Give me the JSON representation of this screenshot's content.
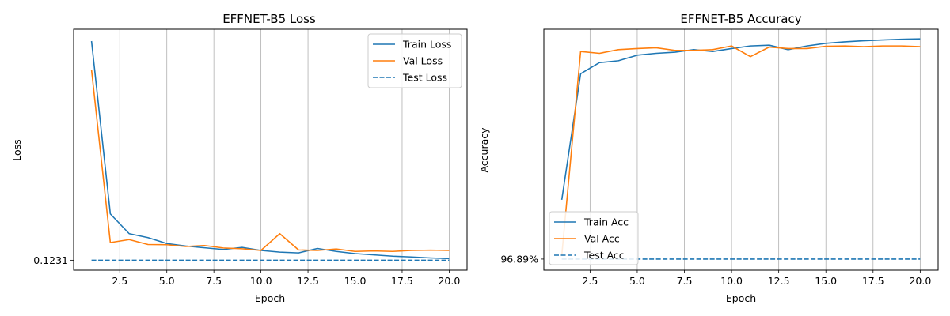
{
  "chart_data": [
    {
      "type": "line",
      "title": "EFFNET-B5 Loss",
      "xlabel": "Epoch",
      "ylabel": "Loss",
      "x": [
        1,
        2,
        3,
        4,
        5,
        6,
        7,
        8,
        9,
        10,
        11,
        12,
        13,
        14,
        15,
        16,
        17,
        18,
        19,
        20
      ],
      "xlim": [
        0.05,
        20.95
      ],
      "ylim": [
        0.113,
        0.357
      ],
      "xticks": [
        2.5,
        5.0,
        7.5,
        10.0,
        12.5,
        15.0,
        17.5,
        20.0
      ],
      "xtick_labels": [
        "2.5",
        "5.0",
        "7.5",
        "10.0",
        "12.5",
        "15.0",
        "17.5",
        "20.0"
      ],
      "yticks": [
        0.1231
      ],
      "ytick_labels": [
        "0.1231"
      ],
      "grid": "x",
      "legend": "top-right",
      "series": [
        {
          "name": "Train Loss",
          "style": "solid",
          "color": "#1f77b4",
          "values": [
            0.345,
            0.17,
            0.15,
            0.146,
            0.14,
            0.1375,
            0.1357,
            0.134,
            0.1361,
            0.133,
            0.1313,
            0.1305,
            0.135,
            0.132,
            0.1298,
            0.1285,
            0.1272,
            0.1264,
            0.1254,
            0.1247
          ]
        },
        {
          "name": "Val Loss",
          "style": "solid",
          "color": "#ff7f0e",
          "values": [
            0.316,
            0.141,
            0.144,
            0.139,
            0.1388,
            0.137,
            0.138,
            0.1355,
            0.1347,
            0.133,
            0.15,
            0.1335,
            0.133,
            0.1345,
            0.132,
            0.1325,
            0.132,
            0.133,
            0.1333,
            0.133
          ]
        },
        {
          "name": "Test Loss",
          "style": "dashed",
          "color": "#1f77b4",
          "values": [
            0.1231,
            0.1231,
            0.1231,
            0.1231,
            0.1231,
            0.1231,
            0.1231,
            0.1231,
            0.1231,
            0.1231,
            0.1231,
            0.1231,
            0.1231,
            0.1231,
            0.1231,
            0.1231,
            0.1231,
            0.1231,
            0.1231,
            0.1231
          ]
        }
      ]
    },
    {
      "type": "line",
      "title": "EFFNET-B5 Accuracy",
      "xlabel": "Epoch",
      "ylabel": "Accuracy",
      "x": [
        1,
        2,
        3,
        4,
        5,
        6,
        7,
        8,
        9,
        10,
        11,
        12,
        13,
        14,
        15,
        16,
        17,
        18,
        19,
        20
      ],
      "xlim": [
        0.05,
        20.95
      ],
      "ylim": [
        96.86,
        97.51
      ],
      "xticks": [
        2.5,
        5.0,
        7.5,
        10.0,
        12.5,
        15.0,
        17.5,
        20.0
      ],
      "xtick_labels": [
        "2.5",
        "5.0",
        "7.5",
        "10.0",
        "12.5",
        "15.0",
        "17.5",
        "20.0"
      ],
      "yticks": [
        96.89
      ],
      "ytick_labels": [
        "96.89%"
      ],
      "grid": "x",
      "legend": "bottom-left",
      "series": [
        {
          "name": "Train Acc",
          "style": "solid",
          "color": "#1f77b4",
          "values": [
            97.05,
            97.39,
            97.42,
            97.425,
            97.44,
            97.445,
            97.448,
            97.455,
            97.45,
            97.458,
            97.465,
            97.467,
            97.455,
            97.465,
            97.472,
            97.476,
            97.479,
            97.481,
            97.483,
            97.484
          ]
        },
        {
          "name": "Val Acc",
          "style": "solid",
          "color": "#ff7f0e",
          "values": [
            96.9,
            97.45,
            97.445,
            97.455,
            97.458,
            97.46,
            97.453,
            97.453,
            97.455,
            97.465,
            97.436,
            97.462,
            97.458,
            97.458,
            97.464,
            97.465,
            97.463,
            97.465,
            97.465,
            97.463
          ]
        },
        {
          "name": "Test Acc",
          "style": "dashed",
          "color": "#1f77b4",
          "values": [
            96.89,
            96.89,
            96.89,
            96.89,
            96.89,
            96.89,
            96.89,
            96.89,
            96.89,
            96.89,
            96.89,
            96.89,
            96.89,
            96.89,
            96.89,
            96.89,
            96.89,
            96.89,
            96.89,
            96.89
          ]
        }
      ]
    }
  ]
}
